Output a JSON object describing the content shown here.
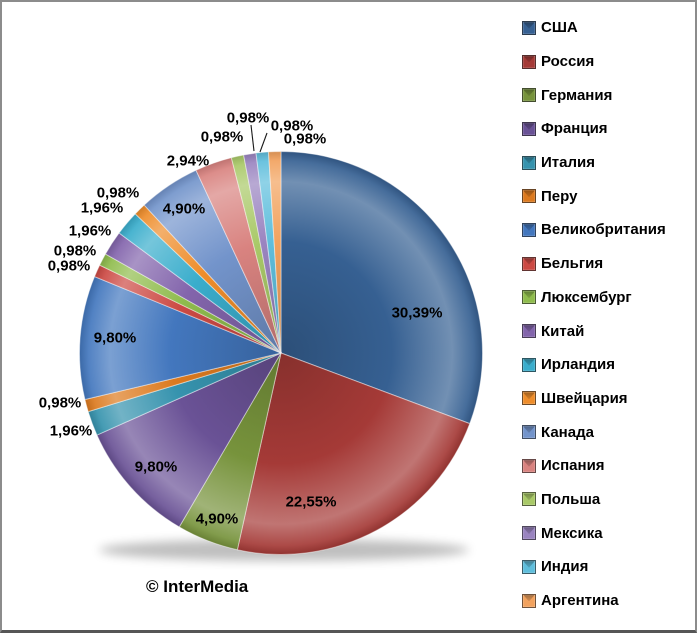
{
  "watermark": "© InterMedia",
  "chart_data": {
    "type": "pie",
    "title": "",
    "legend_position": "right",
    "direction": "clockwise",
    "start_angle": "top",
    "categories": [
      "США",
      "Россия",
      "Германия",
      "Франция",
      "Италия",
      "Перу",
      "Великобритания",
      "Бельгия",
      "Люксембург",
      "Китай",
      "Ирландия",
      "Швейцария",
      "Канада",
      "Испания",
      "Польша",
      "Мексика",
      "Индия",
      "Аргентина"
    ],
    "values": [
      30.39,
      22.55,
      4.9,
      9.8,
      1.96,
      0.98,
      9.8,
      0.98,
      0.98,
      1.96,
      1.96,
      0.98,
      4.9,
      2.94,
      0.98,
      0.98,
      0.98,
      0.98
    ],
    "value_labels": [
      "30,39%",
      "22,55%",
      "4,90%",
      "9,80%",
      "1,96%",
      "0,98%",
      "9,80%",
      "0,98%",
      "0,98%",
      "1,96%",
      "1,96%",
      "0,98%",
      "4,90%",
      "2,94%",
      "0,98%",
      "0,98%",
      "0,98%",
      "0,98%"
    ],
    "colors": [
      "#366092",
      "#A53A37",
      "#77933C",
      "#6A5296",
      "#3693AE",
      "#DC7A1F",
      "#4377BE",
      "#CC4A44",
      "#8FBC4D",
      "#8365AC",
      "#3AADCC",
      "#EE8D2B",
      "#7394CB",
      "#D98380",
      "#A9C968",
      "#9A84C0",
      "#5FBEDC",
      "#F2A25E"
    ]
  }
}
